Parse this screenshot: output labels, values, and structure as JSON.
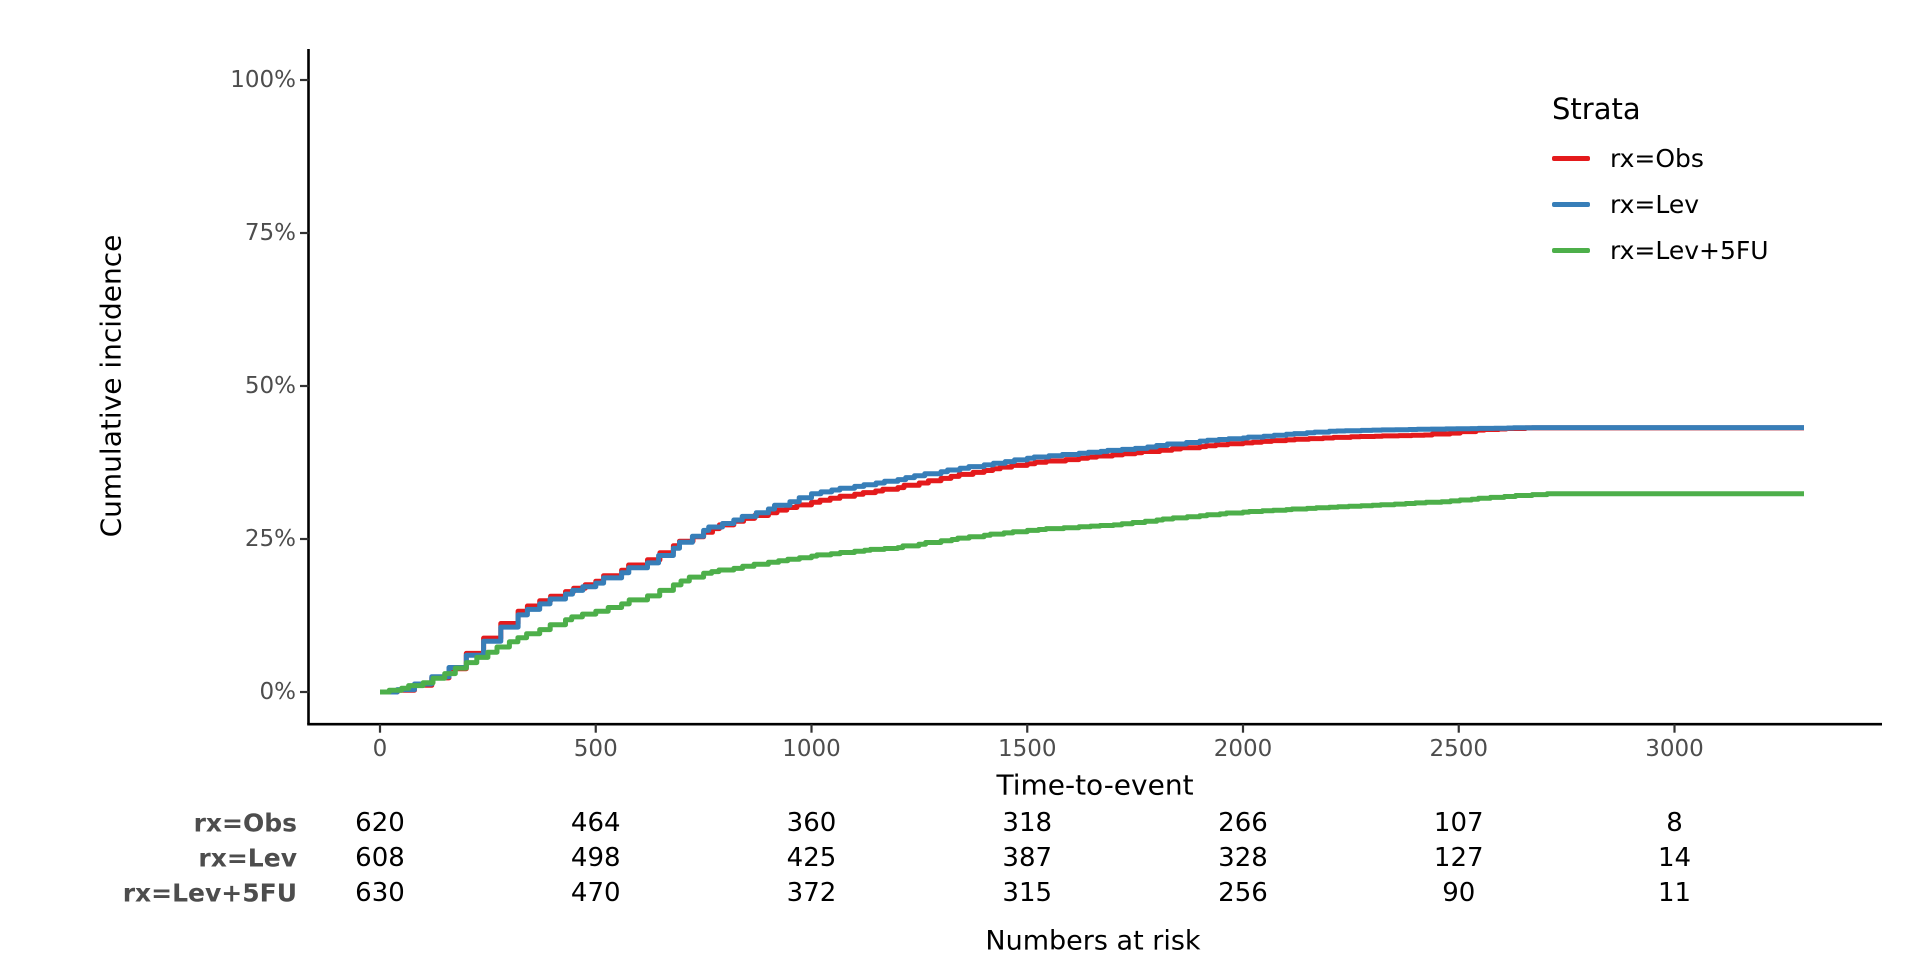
{
  "figure": {
    "y_axis": {
      "title": "Cumulative incidence",
      "tick_labels": [
        "0%",
        "25%",
        "50%",
        "75%",
        "100%"
      ],
      "tick_values_pct": [
        0,
        25,
        50,
        75,
        100
      ]
    },
    "x_axis": {
      "title": "Time-to-event",
      "tick_labels": [
        "0",
        "500",
        "1000",
        "1500",
        "2000",
        "2500",
        "3000"
      ],
      "tick_values": [
        0,
        500,
        1000,
        1500,
        2000,
        2500,
        3000
      ]
    },
    "legend": {
      "title": "Strata",
      "items": [
        {
          "label": "rx=Obs",
          "color": "#E41A1C"
        },
        {
          "label": "rx=Lev",
          "color": "#377EB8"
        },
        {
          "label": "rx=Lev+5FU",
          "color": "#4DAF4A"
        }
      ]
    },
    "risk_table": {
      "caption": "Numbers at risk",
      "time_points": [
        0,
        500,
        1000,
        1500,
        2000,
        2500,
        3000
      ],
      "rows": [
        {
          "label": "rx=Obs",
          "counts": [
            620,
            464,
            360,
            318,
            266,
            107,
            8
          ]
        },
        {
          "label": "rx=Lev",
          "counts": [
            608,
            498,
            425,
            387,
            328,
            127,
            14
          ]
        },
        {
          "label": "rx=Lev+5FU",
          "counts": [
            630,
            470,
            372,
            315,
            256,
            90,
            11
          ]
        }
      ]
    }
  },
  "chart_data": {
    "type": "line",
    "subtype": "kaplan-meier-step",
    "title": "",
    "xlabel": "Time-to-event",
    "ylabel": "Cumulative incidence",
    "x_ticks": [
      0,
      500,
      1000,
      1500,
      2000,
      2500,
      3000
    ],
    "y_ticks_pct": [
      0,
      25,
      50,
      75,
      100
    ],
    "xlim": [
      -165,
      3475
    ],
    "ylim_pct": [
      -5,
      105
    ],
    "x_max_data": 3300,
    "grid": "off",
    "legend_position": "right-top",
    "series": [
      {
        "name": "rx=Obs",
        "color": "#E41A1C",
        "points_time_pct": [
          [
            0,
            0
          ],
          [
            40,
            0.3
          ],
          [
            80,
            1.1
          ],
          [
            120,
            2.3
          ],
          [
            160,
            3.8
          ],
          [
            200,
            6.3
          ],
          [
            240,
            8.8
          ],
          [
            280,
            11.2
          ],
          [
            320,
            13.2
          ],
          [
            370,
            14.9
          ],
          [
            430,
            16.4
          ],
          [
            500,
            18.1
          ],
          [
            560,
            19.9
          ],
          [
            620,
            21.6
          ],
          [
            680,
            23.9
          ],
          [
            750,
            26.1
          ],
          [
            820,
            27.9
          ],
          [
            900,
            29.3
          ],
          [
            1000,
            31.0
          ],
          [
            1100,
            32.3
          ],
          [
            1200,
            33.4
          ],
          [
            1300,
            34.9
          ],
          [
            1400,
            36.2
          ],
          [
            1500,
            37.3
          ],
          [
            1620,
            38.2
          ],
          [
            1750,
            39.1
          ],
          [
            1900,
            40.1
          ],
          [
            2000,
            40.7
          ],
          [
            2100,
            41.2
          ],
          [
            2250,
            41.7
          ],
          [
            2420,
            42.0
          ],
          [
            2480,
            42.3
          ],
          [
            2540,
            42.8
          ],
          [
            2655,
            43.15
          ],
          [
            3300,
            43.15
          ]
        ]
      },
      {
        "name": "rx=Lev",
        "color": "#377EB8",
        "points_time_pct": [
          [
            0,
            0
          ],
          [
            40,
            0.4
          ],
          [
            80,
            1.3
          ],
          [
            120,
            2.5
          ],
          [
            160,
            4.0
          ],
          [
            200,
            6.0
          ],
          [
            240,
            8.3
          ],
          [
            280,
            10.6
          ],
          [
            320,
            12.6
          ],
          [
            370,
            14.4
          ],
          [
            430,
            16.0
          ],
          [
            500,
            17.8
          ],
          [
            560,
            19.5
          ],
          [
            620,
            21.1
          ],
          [
            680,
            23.5
          ],
          [
            750,
            26.4
          ],
          [
            820,
            28.1
          ],
          [
            900,
            29.9
          ],
          [
            950,
            31.1
          ],
          [
            1000,
            32.4
          ],
          [
            1100,
            33.6
          ],
          [
            1200,
            34.7
          ],
          [
            1300,
            36.0
          ],
          [
            1400,
            37.1
          ],
          [
            1500,
            38.2
          ],
          [
            1620,
            39.0
          ],
          [
            1750,
            39.8
          ],
          [
            1900,
            41.0
          ],
          [
            2000,
            41.5
          ],
          [
            2100,
            42.1
          ],
          [
            2200,
            42.6
          ],
          [
            2300,
            42.8
          ],
          [
            2670,
            43.2
          ],
          [
            3300,
            43.2
          ]
        ]
      },
      {
        "name": "rx=Lev+5FU",
        "color": "#4DAF4A",
        "points_time_pct": [
          [
            0,
            0
          ],
          [
            50,
            0.6
          ],
          [
            100,
            1.5
          ],
          [
            150,
            3.0
          ],
          [
            200,
            4.8
          ],
          [
            250,
            6.5
          ],
          [
            300,
            8.2
          ],
          [
            370,
            10.2
          ],
          [
            430,
            11.8
          ],
          [
            500,
            13.2
          ],
          [
            560,
            14.4
          ],
          [
            620,
            15.7
          ],
          [
            680,
            17.5
          ],
          [
            750,
            19.4
          ],
          [
            820,
            20.2
          ],
          [
            900,
            21.2
          ],
          [
            1000,
            22.2
          ],
          [
            1100,
            23.0
          ],
          [
            1200,
            23.6
          ],
          [
            1300,
            24.7
          ],
          [
            1400,
            25.6
          ],
          [
            1500,
            26.4
          ],
          [
            1620,
            27.0
          ],
          [
            1700,
            27.3
          ],
          [
            1800,
            28.1
          ],
          [
            1900,
            28.8
          ],
          [
            2000,
            29.4
          ],
          [
            2100,
            29.8
          ],
          [
            2200,
            30.2
          ],
          [
            2300,
            30.5
          ],
          [
            2460,
            31.1
          ],
          [
            2530,
            31.5
          ],
          [
            2705,
            32.4
          ],
          [
            3300,
            32.4
          ]
        ]
      }
    ]
  },
  "colors": {
    "background": "#ffffff",
    "axis_line": "#000000",
    "tick_mark": "#333333",
    "tick_text": "#4d4d4d",
    "title_text": "#000000",
    "risk_label_text": "#4d4d4d",
    "risk_number_text": "#000000"
  }
}
